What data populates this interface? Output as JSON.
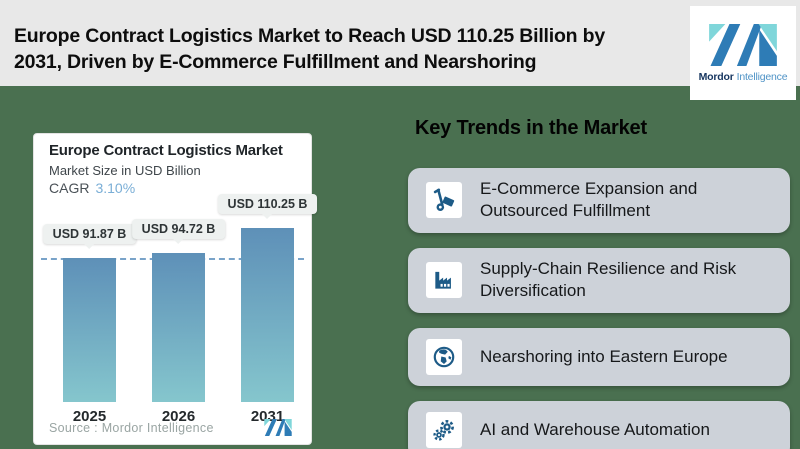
{
  "header": {
    "title_lines": [
      "Europe Contract Logistics Market to Reach USD 110.25 Billion by",
      "2031, Driven by E-Commerce Fulfillment and Nearshoring"
    ],
    "brand": {
      "name_bold": "Mordor",
      "name_light": "Intelligence"
    }
  },
  "chart_card": {
    "title": "Europe Contract Logistics Market",
    "subtitle": "Market Size in USD Billion",
    "cagr_label": "CAGR",
    "cagr_value": "3.10%",
    "source_text": "Source :  Mordor Intelligence"
  },
  "chart_data": {
    "type": "bar",
    "title": "Europe Contract Logistics Market",
    "ylabel": "Market Size in USD Billion",
    "cagr": "3.10%",
    "categories": [
      "2025",
      "2026",
      "2031"
    ],
    "values": [
      91.87,
      94.72,
      110.25
    ],
    "value_labels": [
      "USD 91.87 B",
      "USD 94.72 B",
      "USD 110.25 B"
    ],
    "unit": "USD Billion",
    "axis_truncated": true,
    "grid": false,
    "dashed_reference_line_at": 91.87,
    "bar_gradient": [
      "#5e90b8",
      "#85c6cd"
    ]
  },
  "trends": {
    "heading": "Key Trends in the Market",
    "items": [
      {
        "icon": "hand-truck-icon",
        "label": "E-Commerce Expansion and Outsourced Fulfillment"
      },
      {
        "icon": "factory-icon",
        "label": "Supply-Chain Resilience and Risk Diversification"
      },
      {
        "icon": "globe-icon",
        "label": "Nearshoring into Eastern Europe"
      },
      {
        "icon": "gears-icon",
        "label": "AI and Warehouse Automation"
      }
    ]
  },
  "colors": {
    "header_bg": "#e8e8e8",
    "main_bg": "#4a7050",
    "card_bg": "#ffffff",
    "trend_card_bg": "#cdd2d9",
    "icon_blue": "#1d5b87",
    "cagr_blue": "#7aaed6",
    "dashed_line": "#79a3c9",
    "logo_blue": "#2e7cb6",
    "logo_teal": "#7fd6da"
  }
}
